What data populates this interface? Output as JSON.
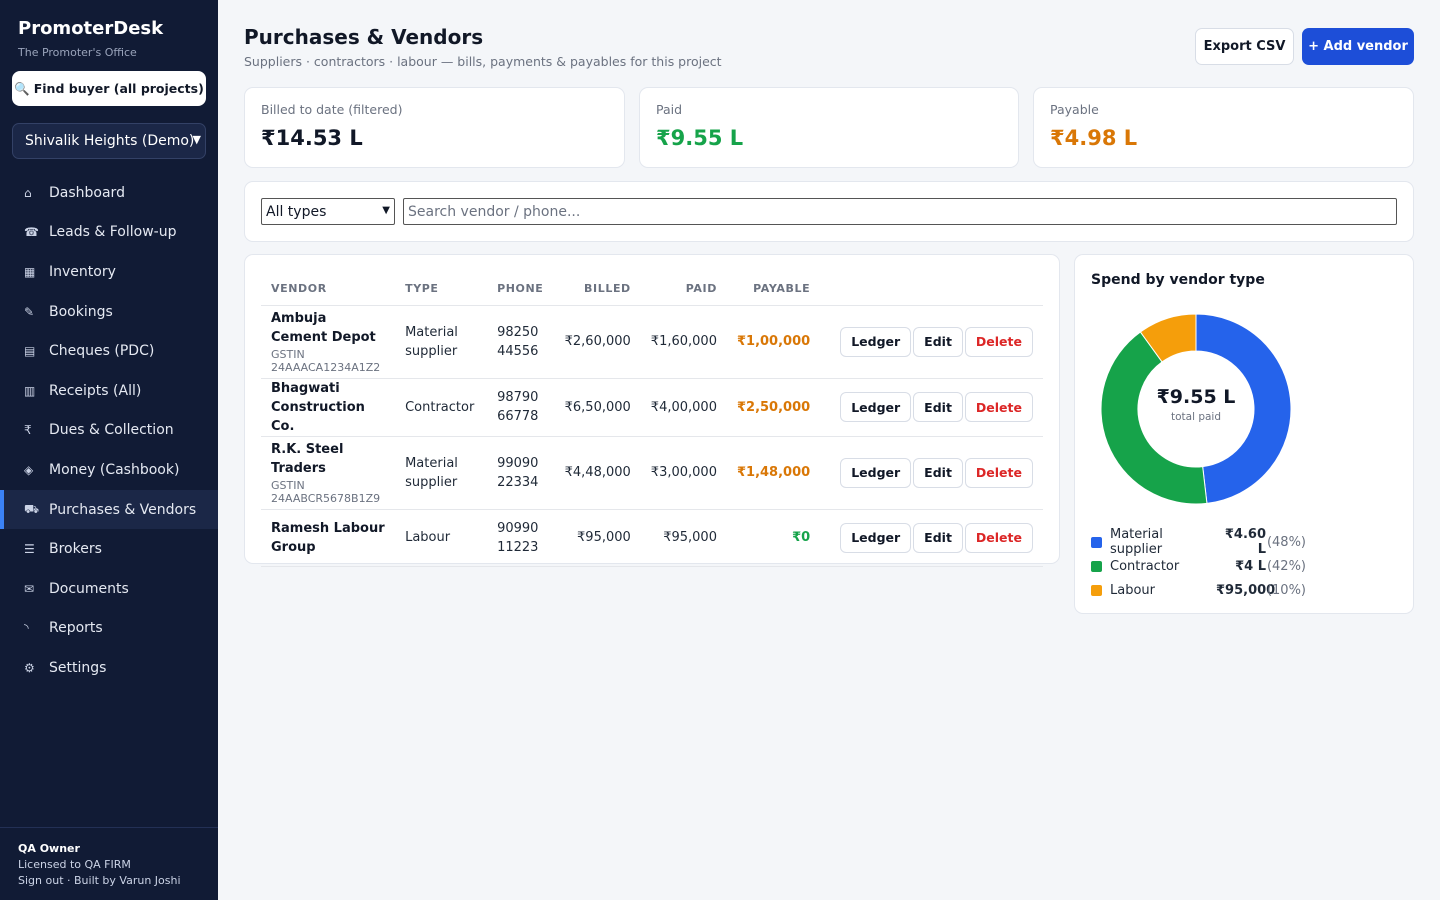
{
  "app": {
    "name": "PromoterDesk",
    "tagline": "The Promoter's Office",
    "find_buyer": "Find buyer (all projects)",
    "project": "Shivalik Heights (Demo)"
  },
  "nav": [
    {
      "icon": "⌂",
      "label": "Dashboard"
    },
    {
      "icon": "☎",
      "label": "Leads & Follow-up"
    },
    {
      "icon": "▦",
      "label": "Inventory"
    },
    {
      "icon": "✎",
      "label": "Bookings"
    },
    {
      "icon": "▤",
      "label": "Cheques (PDC)"
    },
    {
      "icon": "▥",
      "label": "Receipts (All)"
    },
    {
      "icon": "₹",
      "label": "Dues & Collection"
    },
    {
      "icon": "◈",
      "label": "Money (Cashbook)"
    },
    {
      "icon": "⛟",
      "label": "Purchases & Vendors"
    },
    {
      "icon": "☰",
      "label": "Brokers"
    },
    {
      "icon": "✉",
      "label": "Documents"
    },
    {
      "icon": "◝",
      "label": "Reports"
    },
    {
      "icon": "⚙",
      "label": "Settings"
    }
  ],
  "footer": {
    "owner": "QA Owner",
    "license": "Licensed to QA FIRM",
    "links": "Sign out · Built by Varun Joshi"
  },
  "header": {
    "title": "Purchases & Vendors",
    "subtitle": "Suppliers · contractors · labour — bills, payments & payables for this project",
    "export": "Export CSV",
    "add": "+ Add vendor"
  },
  "stats": {
    "billed_label": "Billed to date (filtered)",
    "billed": "₹14.53 L",
    "paid_label": "Paid",
    "paid": "₹9.55 L",
    "payable_label": "Payable",
    "payable": "₹4.98 L"
  },
  "filter": {
    "type": "All types",
    "search_placeholder": "Search vendor / phone..."
  },
  "table": {
    "headers": {
      "vendor": "Vendor",
      "type": "Type",
      "phone": "Phone",
      "billed": "Billed",
      "paid": "Paid",
      "payable": "Payable"
    },
    "actions": {
      "ledger": "Ledger",
      "edit": "Edit",
      "delete": "Delete"
    },
    "rows": [
      {
        "name": "Ambuja Cement Depot",
        "gstin": "GSTIN 24AAACA1234A1Z2",
        "type": "Material supplier",
        "phone": "98250 44556",
        "billed": "₹2,60,000",
        "paid": "₹1,60,000",
        "payable": "₹1,00,000"
      },
      {
        "name": "Bhagwati Construction Co.",
        "gstin": "",
        "type": "Contractor",
        "phone": "98790 66778",
        "billed": "₹6,50,000",
        "paid": "₹4,00,000",
        "payable": "₹2,50,000"
      },
      {
        "name": "R.K. Steel Traders",
        "gstin": "GSTIN 24AABCR5678B1Z9",
        "type": "Material supplier",
        "phone": "99090 22334",
        "billed": "₹4,48,000",
        "paid": "₹3,00,000",
        "payable": "₹1,48,000"
      },
      {
        "name": "Ramesh Labour Group",
        "gstin": "",
        "type": "Labour",
        "phone": "90990 11223",
        "billed": "₹95,000",
        "paid": "₹95,000",
        "payable": "₹0"
      }
    ]
  },
  "colors": {
    "primary": "#1d4ed8",
    "paid": "#16a34a",
    "payable": "#d97706",
    "danger": "#dc2626"
  },
  "chart_data": {
    "type": "pie",
    "title": "Spend by vendor type",
    "center_value": "₹9.55 L",
    "center_caption": "total paid",
    "slices": [
      {
        "name": "Material supplier",
        "value": 460000,
        "amount": "₹4.60 L",
        "percent": "(48%)",
        "color": "#2563eb"
      },
      {
        "name": "Contractor",
        "value": 400000,
        "amount": "₹4 L",
        "percent": "(42%)",
        "color": "#16a34a"
      },
      {
        "name": "Labour",
        "value": 95000,
        "amount": "₹95,000",
        "percent": "(10%)",
        "color": "#f59e0b"
      }
    ]
  }
}
